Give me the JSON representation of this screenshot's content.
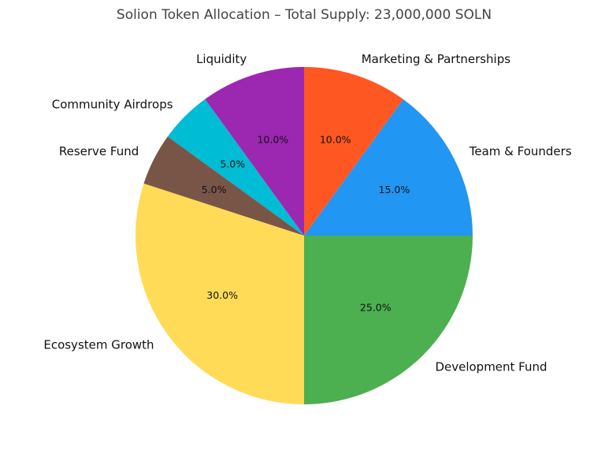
{
  "chart_data": {
    "type": "pie",
    "title": "Solion Token Allocation – Total Supply: 23,000,000 SOLN",
    "start_angle": 90,
    "direction": "counterclockwise",
    "slices": [
      {
        "label": "Liquidity",
        "value": 10.0,
        "pct_label": "10.0%",
        "color": "#9c27b0"
      },
      {
        "label": "Community Airdrops",
        "value": 5.0,
        "pct_label": "5.0%",
        "color": "#00bcd4"
      },
      {
        "label": "Reserve Fund",
        "value": 5.0,
        "pct_label": "5.0%",
        "color": "#795548"
      },
      {
        "label": "Ecosystem Growth",
        "value": 30.0,
        "pct_label": "30.0%",
        "color": "#ffdb58"
      },
      {
        "label": "Development Fund",
        "value": 25.0,
        "pct_label": "25.0%",
        "color": "#4caf50"
      },
      {
        "label": "Team & Founders",
        "value": 15.0,
        "pct_label": "15.0%",
        "color": "#2196f3"
      },
      {
        "label": "Marketing & Partnerships",
        "value": 10.0,
        "pct_label": "10.0%",
        "color": "#ff5722"
      }
    ]
  }
}
